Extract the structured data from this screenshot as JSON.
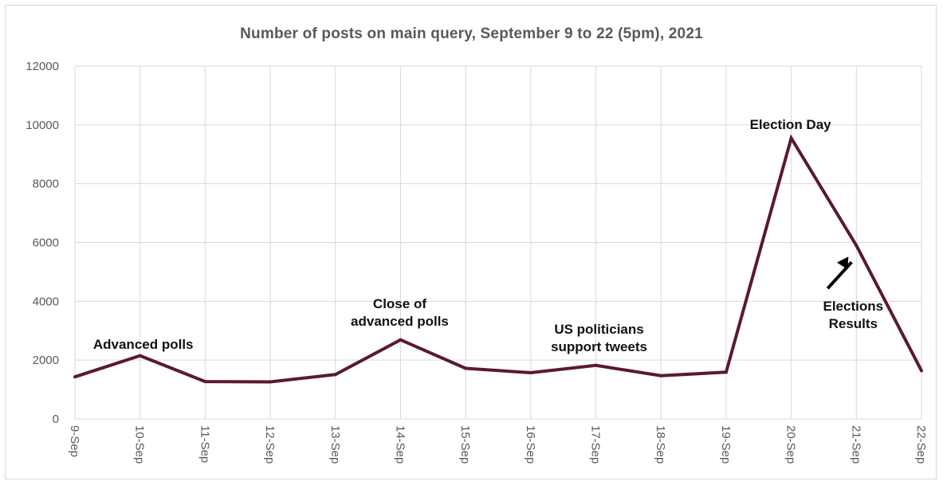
{
  "chart_data": {
    "type": "line",
    "title": "Number of posts on main query, September 9 to 22 (5pm), 2021",
    "xlabel": "",
    "ylabel": "",
    "categories": [
      "9-Sep",
      "10-Sep",
      "11-Sep",
      "12-Sep",
      "13-Sep",
      "14-Sep",
      "15-Sep",
      "16-Sep",
      "17-Sep",
      "18-Sep",
      "19-Sep",
      "20-Sep",
      "21-Sep",
      "22-Sep"
    ],
    "series": [
      {
        "values": [
          1430,
          2150,
          1270,
          1260,
          1510,
          2690,
          1720,
          1570,
          1820,
          1470,
          1590,
          9550,
          5900,
          1640
        ]
      }
    ],
    "ylim": [
      0,
      12000
    ],
    "yticks": [
      "0",
      "2000",
      "4000",
      "6000",
      "8000",
      "10000",
      "12000"
    ],
    "grid": true,
    "legend": "none",
    "line_color": "#5a1a2b",
    "grid_color": "#d9d9d9",
    "annotations": [
      {
        "lines": [
          "Advanced polls"
        ],
        "category": "10-Sep"
      },
      {
        "lines": [
          "Close of",
          "advanced polls"
        ],
        "category": "14-Sep"
      },
      {
        "lines": [
          "US politicians",
          "support tweets"
        ],
        "category": "17-Sep"
      },
      {
        "lines": [
          "Election Day"
        ],
        "category": "20-Sep"
      },
      {
        "lines": [
          "Elections",
          "Results"
        ],
        "category": "21-Sep",
        "arrow": true
      }
    ]
  }
}
